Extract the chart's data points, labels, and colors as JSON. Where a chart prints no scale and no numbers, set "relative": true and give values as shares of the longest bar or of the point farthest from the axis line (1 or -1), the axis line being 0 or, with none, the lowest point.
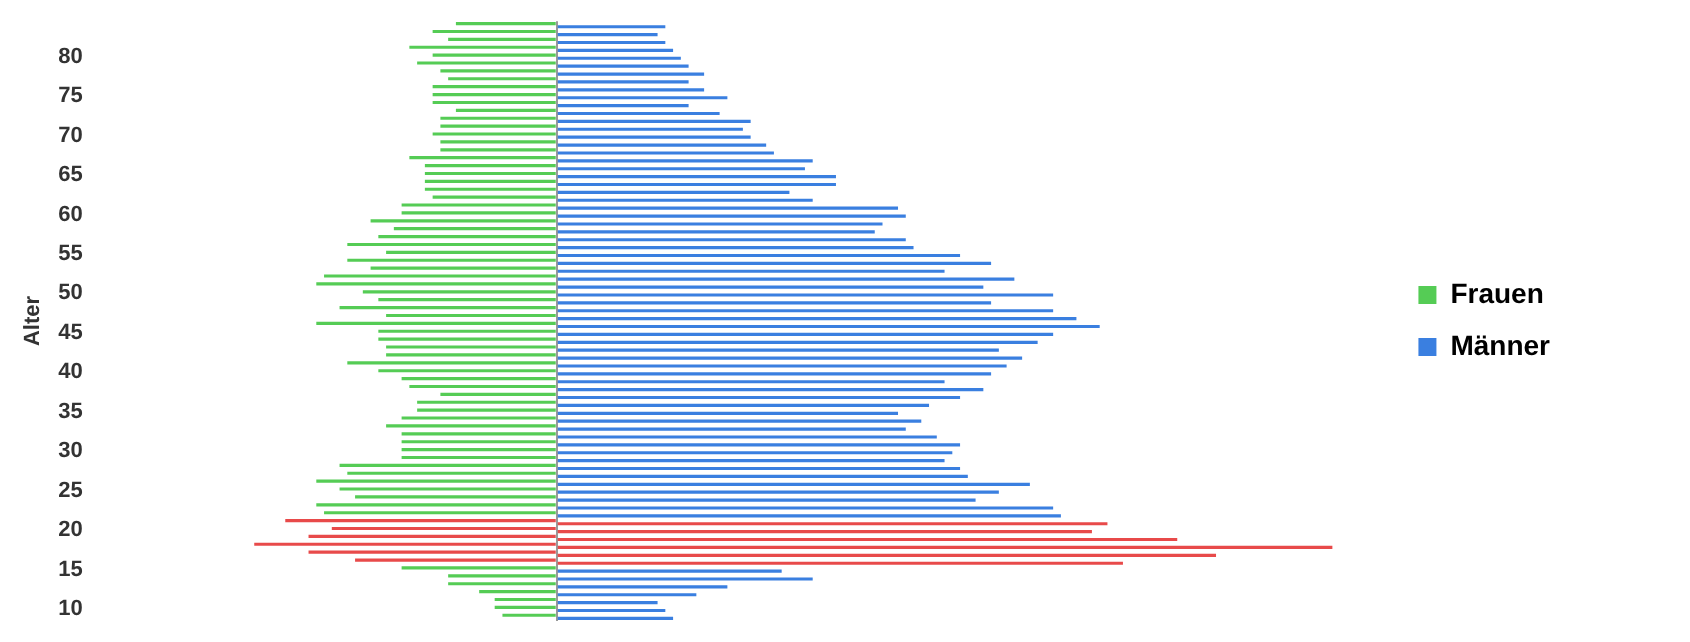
{
  "chart_data": {
    "type": "bar",
    "orientation": "horizontal",
    "relative": true,
    "ylabel": "Alter",
    "legend": "right",
    "grid": false,
    "categories": [
      null,
      null,
      null,
      null,
      "80",
      null,
      null,
      null,
      null,
      "75",
      null,
      null,
      null,
      null,
      "70",
      null,
      null,
      null,
      null,
      "65",
      null,
      null,
      null,
      null,
      "60",
      null,
      null,
      null,
      null,
      "55",
      null,
      null,
      null,
      null,
      "50",
      null,
      null,
      null,
      null,
      "45",
      null,
      null,
      null,
      null,
      "40",
      null,
      null,
      null,
      null,
      "35",
      null,
      null,
      null,
      null,
      "30",
      null,
      null,
      null,
      null,
      "25",
      null,
      null,
      null,
      null,
      "20",
      null,
      null,
      null,
      null,
      "15",
      null,
      null,
      null,
      null,
      "10",
      null
    ],
    "series": [
      {
        "name": "Frauen",
        "color": "#55cc55",
        "values": [
          -0.13,
          -0.16,
          -0.14,
          -0.19,
          -0.16,
          -0.18,
          -0.15,
          -0.14,
          -0.16,
          -0.16,
          -0.16,
          -0.13,
          -0.15,
          -0.15,
          -0.16,
          -0.15,
          -0.15,
          -0.19,
          -0.17,
          -0.17,
          -0.17,
          -0.17,
          -0.16,
          -0.2,
          -0.2,
          -0.24,
          -0.21,
          -0.23,
          -0.27,
          -0.22,
          -0.27,
          -0.24,
          -0.3,
          -0.31,
          -0.25,
          -0.23,
          -0.28,
          -0.22,
          -0.31,
          -0.23,
          -0.23,
          -0.22,
          -0.22,
          -0.27,
          -0.23,
          -0.2,
          -0.19,
          -0.15,
          -0.18,
          -0.18,
          -0.2,
          -0.22,
          -0.2,
          -0.2,
          -0.2,
          -0.2,
          -0.28,
          -0.27,
          -0.31,
          -0.28,
          -0.26,
          -0.31,
          -0.3,
          -0.35,
          -0.29,
          -0.32,
          -0.39,
          -0.32,
          -0.26,
          -0.2,
          -0.14,
          -0.14,
          -0.1,
          -0.08,
          -0.08,
          -0.07
        ],
        "colors": [
          "#55cc55",
          "#55cc55",
          "#55cc55",
          "#55cc55",
          "#55cc55",
          "#55cc55",
          "#55cc55",
          "#55cc55",
          "#55cc55",
          "#55cc55",
          "#55cc55",
          "#55cc55",
          "#55cc55",
          "#55cc55",
          "#55cc55",
          "#55cc55",
          "#55cc55",
          "#55cc55",
          "#55cc55",
          "#55cc55",
          "#55cc55",
          "#55cc55",
          "#55cc55",
          "#55cc55",
          "#55cc55",
          "#55cc55",
          "#55cc55",
          "#55cc55",
          "#55cc55",
          "#55cc55",
          "#55cc55",
          "#55cc55",
          "#55cc55",
          "#55cc55",
          "#55cc55",
          "#55cc55",
          "#55cc55",
          "#55cc55",
          "#55cc55",
          "#55cc55",
          "#55cc55",
          "#55cc55",
          "#55cc55",
          "#55cc55",
          "#55cc55",
          "#55cc55",
          "#55cc55",
          "#55cc55",
          "#55cc55",
          "#55cc55",
          "#55cc55",
          "#55cc55",
          "#55cc55",
          "#55cc55",
          "#55cc55",
          "#55cc55",
          "#55cc55",
          "#55cc55",
          "#55cc55",
          "#55cc55",
          "#55cc55",
          "#55cc55",
          "#55cc55",
          "#e84a4a",
          "#e84a4a",
          "#e84a4a",
          "#e84a4a",
          "#e84a4a",
          "#e84a4a",
          "#55cc55",
          "#55cc55",
          "#55cc55",
          "#55cc55",
          "#55cc55",
          "#55cc55",
          "#55cc55"
        ]
      },
      {
        "name": "Männer",
        "color": "#3a7fe0",
        "values": [
          0.14,
          0.13,
          0.14,
          0.15,
          0.16,
          0.17,
          0.19,
          0.17,
          0.19,
          0.22,
          0.17,
          0.21,
          0.25,
          0.24,
          0.25,
          0.27,
          0.28,
          0.33,
          0.32,
          0.36,
          0.36,
          0.3,
          0.33,
          0.44,
          0.45,
          0.42,
          0.41,
          0.45,
          0.46,
          0.52,
          0.56,
          0.5,
          0.59,
          0.55,
          0.64,
          0.56,
          0.64,
          0.67,
          0.7,
          0.64,
          0.62,
          0.57,
          0.6,
          0.58,
          0.56,
          0.5,
          0.55,
          0.52,
          0.48,
          0.44,
          0.47,
          0.45,
          0.49,
          0.52,
          0.51,
          0.5,
          0.52,
          0.53,
          0.61,
          0.57,
          0.54,
          0.64,
          0.65,
          0.71,
          0.69,
          0.8,
          1,
          0.85,
          0.73,
          0.29,
          0.33,
          0.22,
          0.18,
          0.13,
          0.14,
          0.15
        ],
        "colors": [
          "#3a7fe0",
          "#3a7fe0",
          "#3a7fe0",
          "#3a7fe0",
          "#3a7fe0",
          "#3a7fe0",
          "#3a7fe0",
          "#3a7fe0",
          "#3a7fe0",
          "#3a7fe0",
          "#3a7fe0",
          "#3a7fe0",
          "#3a7fe0",
          "#3a7fe0",
          "#3a7fe0",
          "#3a7fe0",
          "#3a7fe0",
          "#3a7fe0",
          "#3a7fe0",
          "#3a7fe0",
          "#3a7fe0",
          "#3a7fe0",
          "#3a7fe0",
          "#3a7fe0",
          "#3a7fe0",
          "#3a7fe0",
          "#3a7fe0",
          "#3a7fe0",
          "#3a7fe0",
          "#3a7fe0",
          "#3a7fe0",
          "#3a7fe0",
          "#3a7fe0",
          "#3a7fe0",
          "#3a7fe0",
          "#3a7fe0",
          "#3a7fe0",
          "#3a7fe0",
          "#3a7fe0",
          "#3a7fe0",
          "#3a7fe0",
          "#3a7fe0",
          "#3a7fe0",
          "#3a7fe0",
          "#3a7fe0",
          "#3a7fe0",
          "#3a7fe0",
          "#3a7fe0",
          "#3a7fe0",
          "#3a7fe0",
          "#3a7fe0",
          "#3a7fe0",
          "#3a7fe0",
          "#3a7fe0",
          "#3a7fe0",
          "#3a7fe0",
          "#3a7fe0",
          "#3a7fe0",
          "#3a7fe0",
          "#3a7fe0",
          "#3a7fe0",
          "#3a7fe0",
          "#3a7fe0",
          "#e84a4a",
          "#e84a4a",
          "#e84a4a",
          "#e84a4a",
          "#e84a4a",
          "#e84a4a",
          "#3a7fe0",
          "#3a7fe0",
          "#3a7fe0",
          "#3a7fe0",
          "#3a7fe0",
          "#3a7fe0",
          "#3a7fe0"
        ]
      }
    ]
  }
}
